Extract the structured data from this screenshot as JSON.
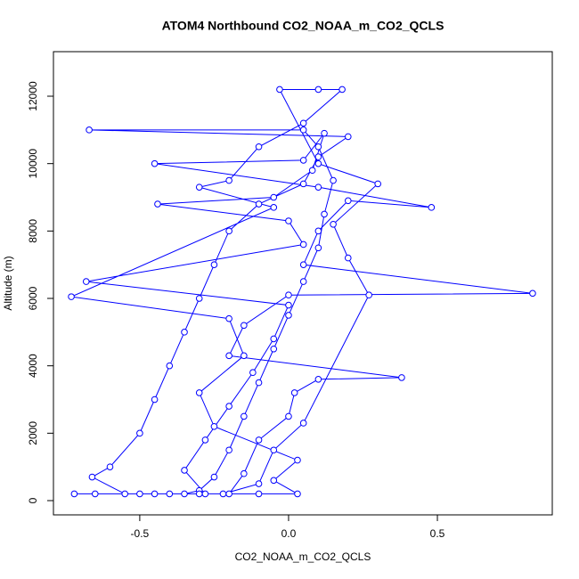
{
  "chart_data": {
    "type": "line",
    "title": "ATOM4 Northbound CO2_NOAA_m_CO2_QCLS",
    "x_label": "CO2_NOAA_m_CO2_QCLS",
    "y_label": "Altitude (m)",
    "xlim": [
      -0.79,
      0.886
    ],
    "ylim": [
      -423,
      13322
    ],
    "xticks": [
      -0.5,
      {
        "value": 0,
        "label": "0.0"
      },
      0.5
    ],
    "yticks": [
      0,
      2000,
      4000,
      6000,
      8000,
      10000,
      12000
    ],
    "markers": true,
    "series": [
      {
        "color": "#0000ff",
        "x": [
          -0.72,
          -0.65,
          -0.5,
          -0.45,
          -0.35,
          -0.3,
          -0.25,
          -0.2,
          -0.15,
          -0.1,
          -0.05,
          0,
          0.05,
          0.1,
          0.12,
          0.15,
          0.1,
          0.05,
          -0.67,
          0.2,
          0.1,
          0.05,
          -0.1,
          -0.2,
          -0.25,
          -0.3,
          -0.35,
          -0.4,
          -0.45,
          -0.5,
          -0.6,
          -0.66,
          -0.55,
          -0.3,
          -0.2,
          -0.15,
          -0.1,
          0,
          0.02,
          0.1,
          0.38,
          -0.2,
          -0.15,
          0,
          0.82,
          0.05,
          0.1,
          0.2,
          0.48,
          0.1,
          -0.45,
          0.05,
          0.12,
          0.08,
          -0.05,
          -0.44,
          0,
          0.05,
          -0.68,
          0,
          -0.05,
          -0.12,
          -0.2,
          -0.28,
          -0.35,
          -0.28,
          -0.22,
          -0.1,
          -0.05,
          0.05,
          0.27,
          0.2,
          0.15,
          0.3,
          0.1,
          -0.03,
          0.1,
          0.18,
          0.05,
          -0.1,
          -0.2,
          -0.3,
          -0.05,
          -0.73,
          -0.2,
          -0.15,
          -0.3,
          -0.25,
          0.03,
          -0.05,
          0.03,
          -0.1,
          -0.4
        ],
        "values": [
          200,
          200,
          200,
          200,
          200,
          300,
          700,
          1500,
          2500,
          3500,
          4500,
          5500,
          6500,
          7500,
          8500,
          9500,
          10500,
          11000,
          11000,
          10800,
          10200,
          9400,
          8800,
          8000,
          7000,
          6000,
          5000,
          4000,
          3000,
          2000,
          1000,
          700,
          200,
          200,
          200,
          800,
          1800,
          2500,
          3200,
          3600,
          3650,
          4300,
          5200,
          6100,
          6150,
          7000,
          8000,
          8900,
          8700,
          9300,
          10000,
          10100,
          10900,
          9800,
          9000,
          8800,
          8300,
          7600,
          6500,
          5800,
          4800,
          3800,
          2800,
          1800,
          900,
          200,
          200,
          500,
          1500,
          2300,
          6100,
          7200,
          8200,
          9400,
          10000,
          12200,
          12200,
          12200,
          11200,
          10500,
          9500,
          9300,
          8700,
          6050,
          5400,
          4300,
          3200,
          2200,
          1200,
          600,
          200,
          200,
          200
        ]
      }
    ]
  }
}
